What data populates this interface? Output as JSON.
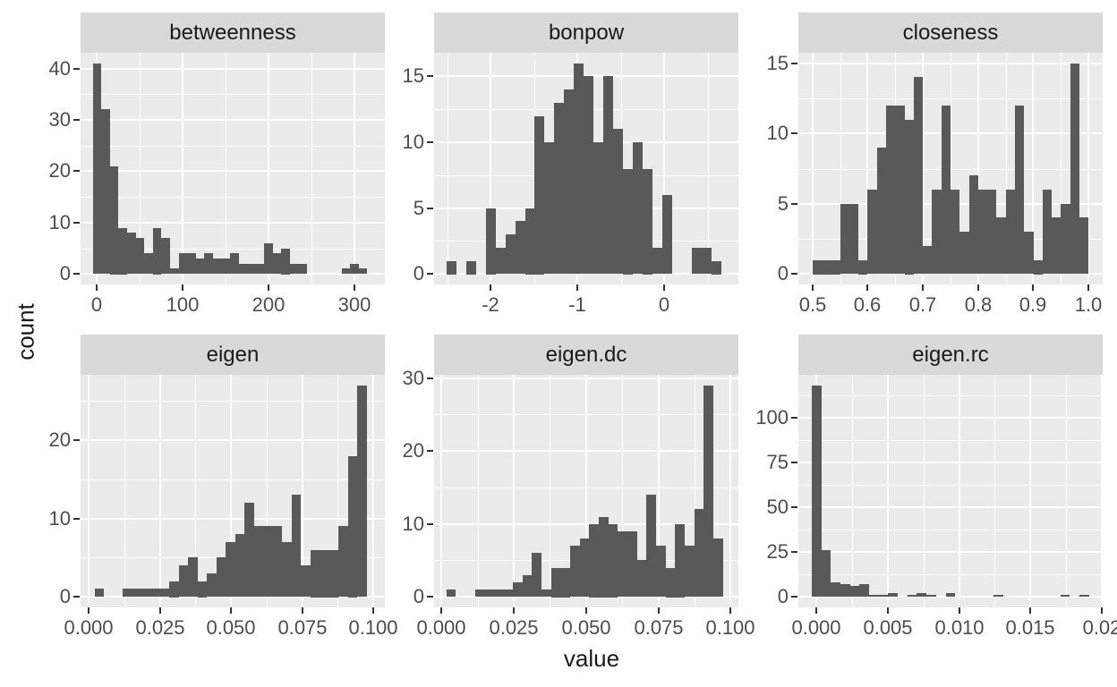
{
  "chart_data": {
    "type": "bar",
    "subtype": "faceted_histogram",
    "title": "",
    "xlabel": "value",
    "ylabel": "count",
    "layout": {
      "rows": 2,
      "cols": 3,
      "grid": true,
      "legend": "none",
      "facet_order": [
        "betweenness",
        "bonpow",
        "closeness",
        "eigen",
        "eigen.dc",
        "eigen.rc"
      ]
    },
    "style": {
      "background": "#FFFFFF",
      "panel_bg": "#EBEBEB",
      "strip_bg": "#D9D9D9",
      "bar_fill": "#595959",
      "gridline": "#FFFFFF",
      "tick_mark": "#333333",
      "tick_label_color": "#4D4D4D",
      "text_color": "#1A1A1A"
    },
    "facets": [
      {
        "title": "betweenness",
        "x_range": [
          -19.3,
          335.6
        ],
        "x_ticks": [
          0,
          100,
          200,
          300
        ],
        "x_tick_labels": [
          "0",
          "100",
          "200",
          "300"
        ],
        "x_minor_ticks": [
          50,
          150,
          250
        ],
        "y_max": 41,
        "y_ticks": [
          0,
          10,
          20,
          30,
          40
        ],
        "y_tick_labels": [
          "0",
          "10",
          "20",
          "30",
          "40"
        ],
        "y_minor_ticks": [
          5,
          15,
          25,
          35
        ],
        "bin_start": -5,
        "bin_width": 10,
        "counts": [
          41,
          32,
          21,
          9,
          8,
          7,
          4,
          9,
          7,
          1,
          4,
          4,
          3,
          4,
          3,
          3,
          4,
          2,
          2,
          2,
          6,
          4,
          5,
          2,
          2,
          0,
          0,
          0,
          0,
          1,
          2,
          1
        ]
      },
      {
        "title": "bonpow",
        "x_range": [
          -2.653,
          0.853
        ],
        "x_ticks": [
          -2,
          -1,
          0
        ],
        "x_tick_labels": [
          "-2",
          "-1",
          "0"
        ],
        "x_minor_ticks": [
          -2.5,
          -1.5,
          -0.5,
          0.5
        ],
        "y_max": 16,
        "y_ticks": [
          0,
          5,
          10,
          15
        ],
        "y_tick_labels": [
          "0",
          "5",
          "10",
          "15"
        ],
        "y_minor_ticks": [
          2.5,
          7.5,
          12.5
        ],
        "bin_start": -2.51,
        "bin_width": 0.113,
        "counts": [
          1,
          0,
          1,
          0,
          5,
          2,
          3,
          4,
          5,
          12,
          10,
          13,
          14,
          16,
          15,
          10,
          15,
          11,
          8,
          10,
          8,
          2,
          6,
          0,
          0,
          2,
          2,
          1
        ]
      },
      {
        "title": "closeness",
        "x_range": [
          0.4746,
          1.0256
        ],
        "x_ticks": [
          0.5,
          0.6,
          0.7,
          0.8,
          0.9,
          1.0
        ],
        "x_tick_labels": [
          "0.5",
          "0.6",
          "0.7",
          "0.8",
          "0.9",
          "1.0"
        ],
        "x_minor_ticks": [
          0.55,
          0.65,
          0.75,
          0.85,
          0.95
        ],
        "y_max": 15,
        "y_ticks": [
          0,
          5,
          10,
          15
        ],
        "y_tick_labels": [
          "0",
          "5",
          "10",
          "15"
        ],
        "y_minor_ticks": [
          2.5,
          7.5,
          12.5
        ],
        "bin_start": 0.5,
        "bin_width": 0.016667,
        "counts": [
          1,
          1,
          1,
          5,
          5,
          1,
          6,
          9,
          12,
          12,
          11,
          14,
          2,
          6,
          12,
          6,
          3,
          7,
          6,
          6,
          4,
          6,
          12,
          3,
          1,
          6,
          4,
          5,
          15,
          4
        ]
      },
      {
        "title": "eigen",
        "x_range": [
          -0.0029,
          0.1041
        ],
        "x_ticks": [
          0,
          0.025,
          0.05,
          0.075,
          0.1
        ],
        "x_tick_labels": [
          "0.000",
          "0.025",
          "0.050",
          "0.075",
          "0.100"
        ],
        "x_minor_ticks": [
          0.0125,
          0.0375,
          0.0625,
          0.0875
        ],
        "y_max": 27,
        "y_ticks": [
          0,
          10,
          20
        ],
        "y_tick_labels": [
          "0",
          "10",
          "20"
        ],
        "y_minor_ticks": [
          5,
          15,
          25
        ],
        "bin_start": 0.002,
        "bin_width": 0.0033,
        "counts": [
          1,
          0,
          0,
          1,
          1,
          1,
          1,
          1,
          2,
          4,
          5,
          2,
          3,
          5,
          7,
          8,
          12,
          9,
          9,
          9,
          7,
          13,
          4,
          6,
          6,
          6,
          9,
          18,
          27
        ]
      },
      {
        "title": "eigen.dc",
        "x_range": [
          -0.0026,
          0.1027
        ],
        "x_ticks": [
          0,
          0.025,
          0.05,
          0.075,
          0.1
        ],
        "x_tick_labels": [
          "0.000",
          "0.025",
          "0.050",
          "0.075",
          "0.100"
        ],
        "x_minor_ticks": [
          0.0125,
          0.0375,
          0.0625,
          0.0875
        ],
        "y_max": 29,
        "y_ticks": [
          0,
          10,
          20,
          30
        ],
        "y_tick_labels": [
          "0",
          "10",
          "20",
          "30"
        ],
        "y_minor_ticks": [
          5,
          15,
          25
        ],
        "bin_start": 0.0016,
        "bin_width": 0.0033,
        "counts": [
          1,
          0,
          0,
          1,
          1,
          1,
          1,
          2,
          3,
          6,
          1,
          4,
          4,
          7,
          8,
          10,
          11,
          10,
          9,
          9,
          5,
          14,
          7,
          4,
          10,
          7,
          12,
          29,
          8
        ]
      },
      {
        "title": "eigen.rc",
        "x_range": [
          -0.00127,
          0.02006
        ],
        "x_ticks": [
          0,
          0.005,
          0.01,
          0.015,
          0.02
        ],
        "x_tick_labels": [
          "0.000",
          "0.005",
          "0.010",
          "0.015",
          "0.02"
        ],
        "x_minor_ticks": [
          0.0025,
          0.0075,
          0.0125,
          0.0175
        ],
        "y_max": 118,
        "y_ticks": [
          0,
          25,
          50,
          75,
          100
        ],
        "y_tick_labels": [
          "0",
          "25",
          "50",
          "75",
          "100"
        ],
        "y_minor_ticks": [
          12.5,
          37.5,
          62.5,
          87.5,
          112.5
        ],
        "bin_start": -0.00033,
        "bin_width": 0.00067,
        "counts": [
          118,
          26,
          8,
          7,
          6,
          7,
          1,
          1,
          2,
          0,
          1,
          2,
          1,
          0,
          2,
          0,
          0,
          0,
          0,
          1,
          0,
          0,
          0,
          0,
          0,
          0,
          1,
          0,
          1
        ]
      }
    ]
  }
}
